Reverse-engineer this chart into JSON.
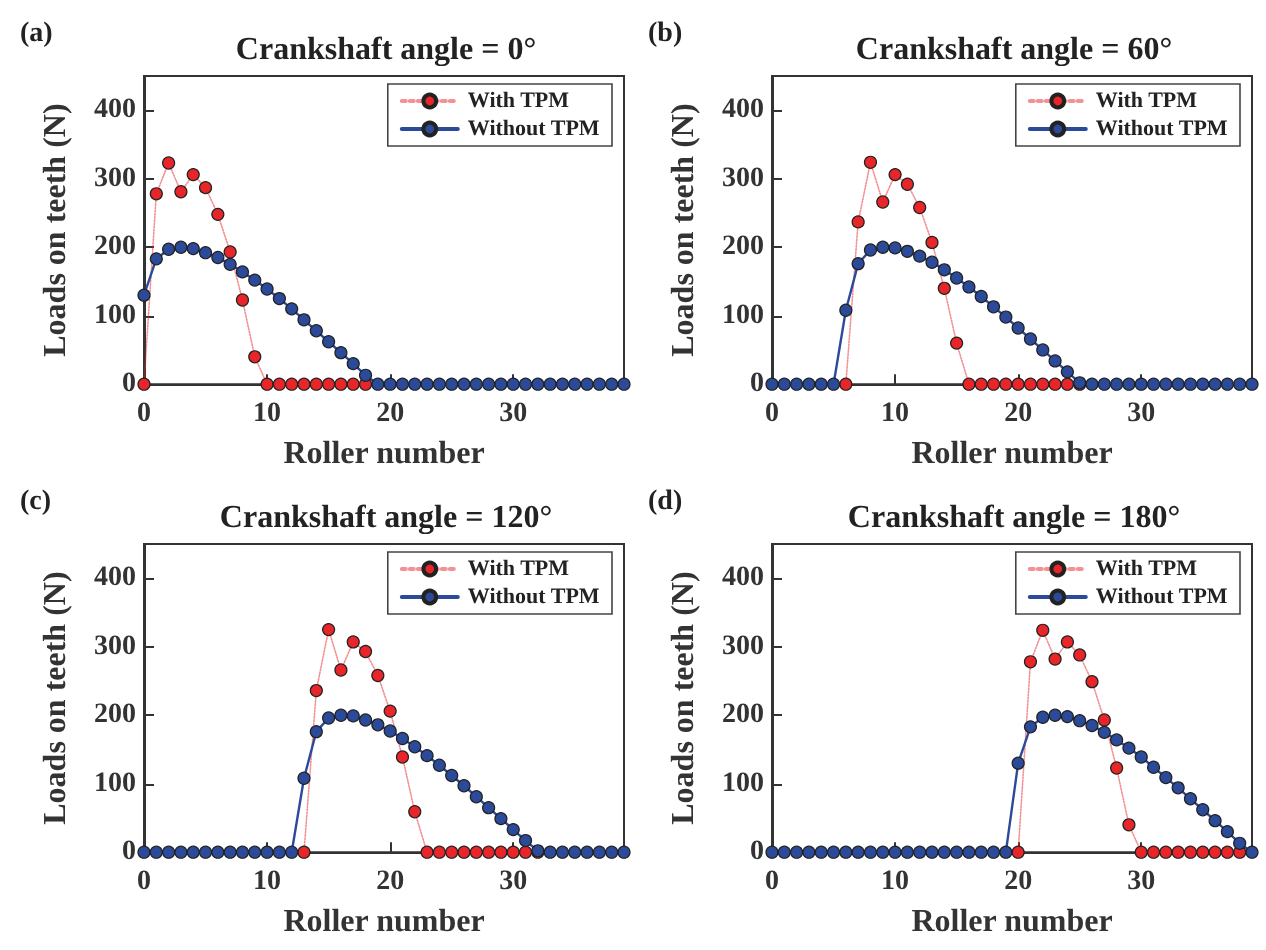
{
  "chart_data": [
    {
      "type": "line",
      "title": "Crankshaft angle = 0°",
      "xlabel": "Roller number",
      "ylabel": "Loads on teeth (N)",
      "annotations": [
        "(a)"
      ],
      "x": [
        0,
        1,
        2,
        3,
        4,
        5,
        6,
        7,
        8,
        9,
        10,
        11,
        12,
        13,
        14,
        15,
        16,
        17,
        18,
        19,
        20,
        21,
        22,
        23,
        24,
        25,
        26,
        27,
        28,
        29,
        30,
        31,
        32,
        33,
        34,
        35,
        36,
        37,
        38,
        39
      ],
      "xlim": [
        0,
        39
      ],
      "xticks": [
        0,
        10,
        20,
        30
      ],
      "ylim": [
        0,
        450
      ],
      "yticks": [
        0,
        100,
        200,
        300,
        400
      ],
      "marker": "circle",
      "legend": "top right",
      "grid": false,
      "series": [
        {
          "name": "With TPM",
          "color": "#e8262a",
          "line_style": "dotted",
          "values": [
            0,
            278,
            323,
            281,
            306,
            287,
            248,
            193,
            123,
            40,
            0,
            0,
            0,
            0,
            0,
            0,
            0,
            0,
            0,
            null,
            null,
            null,
            null,
            null,
            null,
            null,
            null,
            null,
            null,
            null,
            null,
            null,
            null,
            null,
            null,
            null,
            null,
            null,
            null,
            null
          ]
        },
        {
          "name": "Without TPM",
          "color": "#2b4a9a",
          "line_style": "solid",
          "values": [
            130,
            183,
            197,
            200,
            198,
            192,
            185,
            175,
            164,
            152,
            139,
            125,
            110,
            94,
            78,
            62,
            46,
            30,
            13,
            0,
            0,
            0,
            0,
            0,
            0,
            0,
            0,
            0,
            0,
            0,
            0,
            0,
            0,
            0,
            0,
            0,
            0,
            0,
            0,
            0
          ]
        }
      ]
    },
    {
      "type": "line",
      "title": "Crankshaft angle = 60°",
      "xlabel": "Roller number",
      "ylabel": "Loads on teeth (N)",
      "annotations": [
        "(b)"
      ],
      "x": [
        0,
        1,
        2,
        3,
        4,
        5,
        6,
        7,
        8,
        9,
        10,
        11,
        12,
        13,
        14,
        15,
        16,
        17,
        18,
        19,
        20,
        21,
        22,
        23,
        24,
        25,
        26,
        27,
        28,
        29,
        30,
        31,
        32,
        33,
        34,
        35,
        36,
        37,
        38,
        39
      ],
      "xlim": [
        0,
        39
      ],
      "xticks": [
        0,
        10,
        20,
        30
      ],
      "ylim": [
        0,
        450
      ],
      "yticks": [
        0,
        100,
        200,
        300,
        400
      ],
      "marker": "circle",
      "legend": "top right",
      "grid": false,
      "series": [
        {
          "name": "With TPM",
          "color": "#e8262a",
          "line_style": "dotted",
          "values": [
            null,
            null,
            null,
            null,
            null,
            null,
            0,
            237,
            324,
            266,
            306,
            292,
            258,
            207,
            140,
            60,
            0,
            0,
            0,
            0,
            0,
            0,
            0,
            0,
            0,
            0,
            null,
            null,
            null,
            null,
            null,
            null,
            null,
            null,
            null,
            null,
            null,
            null,
            null,
            null
          ]
        },
        {
          "name": "Without TPM",
          "color": "#2b4a9a",
          "line_style": "solid",
          "values": [
            0,
            0,
            0,
            0,
            0,
            0,
            108,
            176,
            196,
            200,
            199,
            194,
            187,
            178,
            167,
            155,
            142,
            128,
            113,
            98,
            82,
            66,
            50,
            34,
            18,
            2,
            0,
            0,
            0,
            0,
            0,
            0,
            0,
            0,
            0,
            0,
            0,
            0,
            0,
            0
          ]
        }
      ]
    },
    {
      "type": "line",
      "title": "Crankshaft angle = 120°",
      "xlabel": "Roller number",
      "ylabel": "Loads on teeth (N)",
      "annotations": [
        "(c)"
      ],
      "x": [
        0,
        1,
        2,
        3,
        4,
        5,
        6,
        7,
        8,
        9,
        10,
        11,
        12,
        13,
        14,
        15,
        16,
        17,
        18,
        19,
        20,
        21,
        22,
        23,
        24,
        25,
        26,
        27,
        28,
        29,
        30,
        31,
        32,
        33,
        34,
        35,
        36,
        37,
        38,
        39
      ],
      "xlim": [
        0,
        39
      ],
      "xticks": [
        0,
        10,
        20,
        30
      ],
      "ylim": [
        0,
        450
      ],
      "yticks": [
        0,
        100,
        200,
        300,
        400
      ],
      "marker": "circle",
      "legend": "top right",
      "grid": false,
      "series": [
        {
          "name": "With TPM",
          "color": "#e8262a",
          "line_style": "dotted",
          "values": [
            null,
            null,
            null,
            null,
            null,
            null,
            null,
            null,
            null,
            null,
            null,
            null,
            null,
            0,
            236,
            325,
            266,
            307,
            293,
            258,
            206,
            139,
            59,
            0,
            0,
            0,
            0,
            0,
            0,
            0,
            0,
            0,
            0,
            null,
            null,
            null,
            null,
            null,
            null,
            null
          ]
        },
        {
          "name": "Without TPM",
          "color": "#2b4a9a",
          "line_style": "solid",
          "values": [
            0,
            0,
            0,
            0,
            0,
            0,
            0,
            0,
            0,
            0,
            0,
            0,
            0,
            108,
            176,
            196,
            200,
            199,
            193,
            186,
            177,
            166,
            154,
            141,
            127,
            112,
            97,
            81,
            65,
            49,
            33,
            17,
            2,
            0,
            0,
            0,
            0,
            0,
            0,
            0
          ]
        }
      ]
    },
    {
      "type": "line",
      "title": "Crankshaft angle = 180°",
      "xlabel": "Roller number",
      "ylabel": "Loads on teeth (N)",
      "annotations": [
        "(d)"
      ],
      "x": [
        0,
        1,
        2,
        3,
        4,
        5,
        6,
        7,
        8,
        9,
        10,
        11,
        12,
        13,
        14,
        15,
        16,
        17,
        18,
        19,
        20,
        21,
        22,
        23,
        24,
        25,
        26,
        27,
        28,
        29,
        30,
        31,
        32,
        33,
        34,
        35,
        36,
        37,
        38,
        39
      ],
      "xlim": [
        0,
        39
      ],
      "xticks": [
        0,
        10,
        20,
        30
      ],
      "ylim": [
        0,
        450
      ],
      "yticks": [
        0,
        100,
        200,
        300,
        400
      ],
      "marker": "circle",
      "legend": "top right",
      "grid": false,
      "series": [
        {
          "name": "With TPM",
          "color": "#e8262a",
          "line_style": "dotted",
          "values": [
            null,
            null,
            null,
            null,
            null,
            null,
            null,
            null,
            null,
            null,
            null,
            null,
            null,
            null,
            null,
            null,
            null,
            null,
            null,
            null,
            0,
            278,
            324,
            282,
            307,
            288,
            249,
            193,
            123,
            40,
            0,
            0,
            0,
            0,
            0,
            0,
            0,
            0,
            0,
            null
          ]
        },
        {
          "name": "Without TPM",
          "color": "#2b4a9a",
          "line_style": "solid",
          "values": [
            0,
            0,
            0,
            0,
            0,
            0,
            0,
            0,
            0,
            0,
            0,
            0,
            0,
            0,
            0,
            0,
            0,
            0,
            0,
            0,
            130,
            183,
            197,
            200,
            198,
            192,
            185,
            175,
            164,
            152,
            139,
            124,
            109,
            94,
            78,
            62,
            46,
            30,
            13,
            0
          ]
        }
      ]
    }
  ]
}
